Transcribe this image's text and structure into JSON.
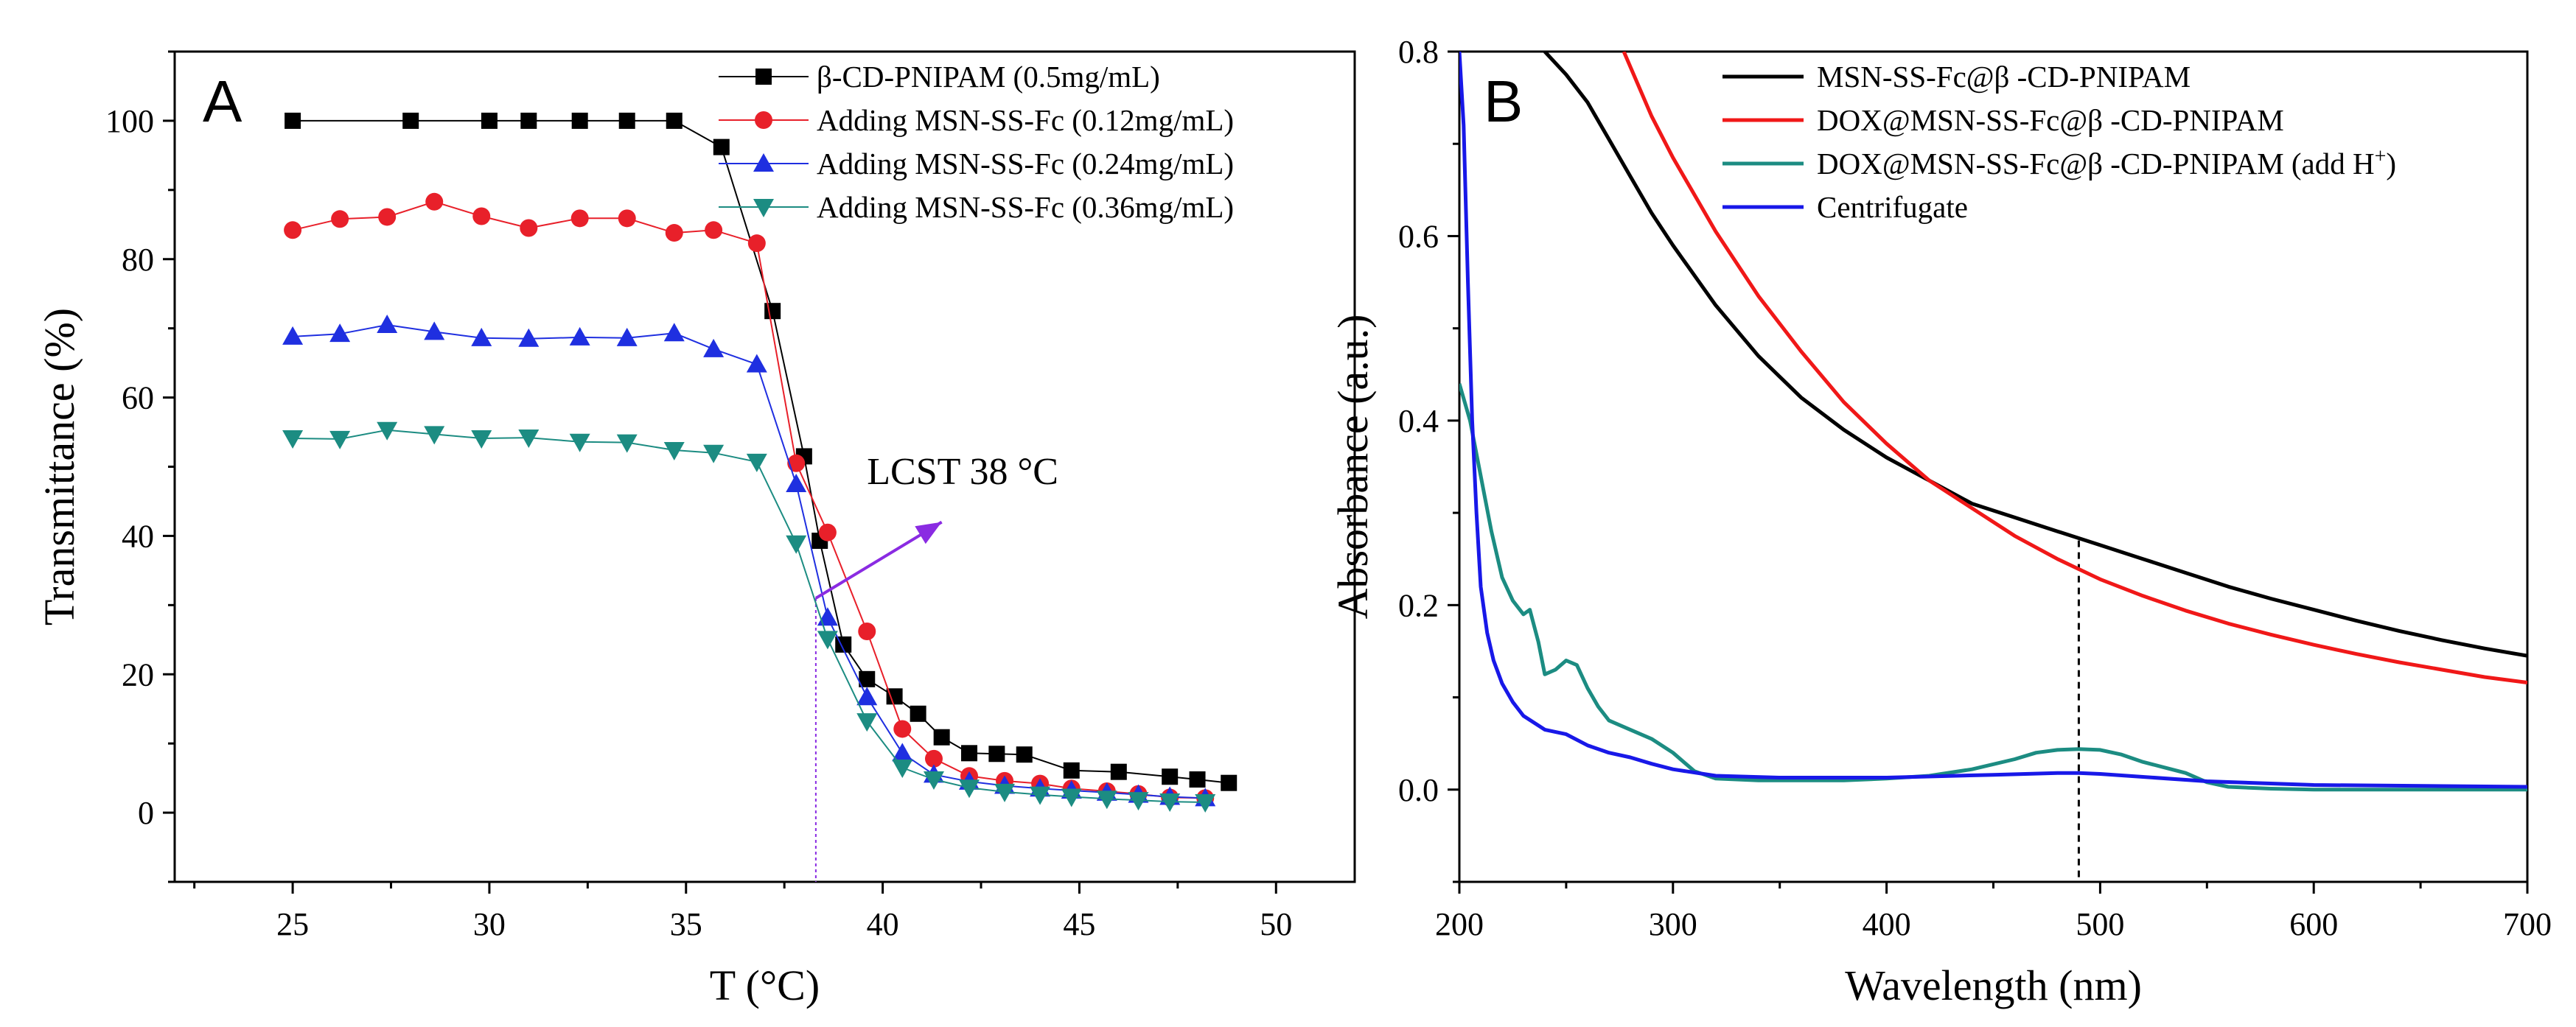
{
  "chart_data": [
    {
      "type": "line",
      "panel_label": "A",
      "title": "",
      "xlabel": "T (°C)",
      "ylabel": "Transmittance (%)",
      "xlim": [
        22,
        52
      ],
      "ylim": [
        -10,
        110
      ],
      "xticks": [
        25,
        30,
        35,
        40,
        45,
        50
      ],
      "yticks": [
        0,
        20,
        40,
        60,
        80,
        100
      ],
      "grid": false,
      "legend_position": "top-right",
      "annotation": {
        "text": "LCST 38 °C",
        "arrow_from": [
          38.3,
          31
        ],
        "arrow_to": [
          41.5,
          42
        ],
        "vline_x": 38.3,
        "color": "#8a2be2"
      },
      "series": [
        {
          "name": "β-CD-PNIPAM (0.5mg/mL)",
          "color": "#000000",
          "marker": "square",
          "x": [
            25,
            28,
            30,
            31,
            32.3,
            33.5,
            34.7,
            35.9,
            37.2,
            38.0,
            38.4,
            39.0,
            39.6,
            40.3,
            40.9,
            41.5,
            42.2,
            42.9,
            43.6,
            44.8,
            46.0,
            47.3,
            48.0,
            48.8
          ],
          "y": [
            100,
            100,
            100,
            100,
            100,
            100,
            100,
            96.2,
            72.5,
            51.5,
            39.3,
            24.3,
            19.3,
            16.8,
            14.3,
            10.9,
            8.6,
            8.5,
            8.4,
            6.1,
            5.9,
            5.2,
            4.8,
            4.3
          ]
        },
        {
          "name": "Adding MSN-SS-Fc (0.12mg/mL)",
          "color": "#e8202a",
          "marker": "circle",
          "x": [
            25,
            26.2,
            27.4,
            28.6,
            29.8,
            31.0,
            32.3,
            33.5,
            34.7,
            35.7,
            36.8,
            37.8,
            38.6,
            39.6,
            40.5,
            41.3,
            42.2,
            43.1,
            44.0,
            44.8,
            45.7,
            46.5,
            47.3,
            48.2
          ],
          "y": [
            84.2,
            85.8,
            86.1,
            88.3,
            86.2,
            84.5,
            85.9,
            85.9,
            83.8,
            84.2,
            82.3,
            50.5,
            40.5,
            26.2,
            12.1,
            7.8,
            5.3,
            4.6,
            4.2,
            3.5,
            3.1,
            2.7,
            2.2,
            2.1
          ]
        },
        {
          "name": "Adding MSN-SS-Fc (0.24mg/mL)",
          "color": "#1f2fe0",
          "marker": "triangle-up",
          "x": [
            25,
            26.2,
            27.4,
            28.6,
            29.8,
            31.0,
            32.3,
            33.5,
            34.7,
            35.7,
            36.8,
            37.8,
            38.6,
            39.6,
            40.5,
            41.3,
            42.2,
            43.1,
            44.0,
            44.8,
            45.7,
            46.5,
            47.3,
            48.2
          ],
          "y": [
            68.8,
            69.2,
            70.5,
            69.5,
            68.6,
            68.5,
            68.7,
            68.6,
            69.3,
            67.0,
            64.8,
            47.5,
            28.2,
            16.7,
            8.6,
            5.5,
            4.5,
            3.9,
            3.5,
            3.2,
            2.9,
            2.6,
            2.3,
            2.1
          ]
        },
        {
          "name": "Adding MSN-SS-Fc (0.36mg/mL)",
          "color": "#1c8c82",
          "marker": "triangle-down",
          "x": [
            25,
            26.2,
            27.4,
            28.6,
            29.8,
            31.0,
            32.3,
            33.5,
            34.7,
            35.7,
            36.8,
            37.8,
            38.6,
            39.6,
            40.5,
            41.3,
            42.2,
            43.1,
            44.0,
            44.8,
            45.7,
            46.5,
            47.3,
            48.2
          ],
          "y": [
            54.1,
            54.0,
            55.3,
            54.7,
            54.1,
            54.2,
            53.6,
            53.5,
            52.4,
            52.0,
            50.7,
            38.9,
            25.1,
            13.2,
            6.5,
            4.8,
            3.6,
            3.0,
            2.6,
            2.3,
            2.0,
            1.8,
            1.6,
            1.5
          ]
        }
      ]
    },
    {
      "type": "line",
      "panel_label": "B",
      "title": "",
      "xlabel": "Wavelength (nm)",
      "ylabel": "Absorbance (a.u.)",
      "xlim": [
        200,
        700
      ],
      "ylim": [
        -0.1,
        0.8
      ],
      "xticks": [
        200,
        300,
        400,
        500,
        600,
        700
      ],
      "yticks": [
        0.0,
        0.2,
        0.4,
        0.6,
        0.8
      ],
      "grid": false,
      "legend_position": "top-right",
      "annotation": {
        "vline_x": 490,
        "vline_y_top": 0.27,
        "style": "dashed"
      },
      "series": [
        {
          "name": "MSN-SS-Fc@β -CD-PNIPAM",
          "color": "#000000",
          "x": [
            240,
            250,
            260,
            270,
            280,
            290,
            300,
            320,
            340,
            360,
            380,
            400,
            420,
            440,
            460,
            480,
            500,
            520,
            540,
            560,
            580,
            600,
            620,
            640,
            660,
            680,
            700
          ],
          "y": [
            0.8,
            0.775,
            0.745,
            0.705,
            0.665,
            0.625,
            0.59,
            0.525,
            0.47,
            0.425,
            0.39,
            0.36,
            0.335,
            0.31,
            0.295,
            0.28,
            0.265,
            0.25,
            0.235,
            0.22,
            0.207,
            0.195,
            0.183,
            0.172,
            0.162,
            0.153,
            0.145
          ]
        },
        {
          "name": "DOX@MSN-SS-Fc@β -CD-PNIPAM",
          "color": "#f01818",
          "x": [
            277,
            290,
            300,
            320,
            340,
            360,
            380,
            400,
            420,
            440,
            460,
            480,
            500,
            520,
            540,
            560,
            580,
            600,
            620,
            640,
            660,
            680,
            700
          ],
          "y": [
            0.8,
            0.73,
            0.685,
            0.605,
            0.535,
            0.475,
            0.42,
            0.375,
            0.335,
            0.305,
            0.275,
            0.25,
            0.228,
            0.21,
            0.194,
            0.18,
            0.168,
            0.157,
            0.147,
            0.138,
            0.13,
            0.122,
            0.116
          ]
        },
        {
          "name": "DOX@MSN-SS-Fc@β -CD-PNIPAM (add H⁺)",
          "name_main": "DOX@MSN-SS-Fc@β -CD-PNIPAM (add H",
          "name_sup": "+",
          "name_end": ")",
          "color": "#1c8c82",
          "x": [
            200,
            205,
            210,
            215,
            220,
            225,
            230,
            233,
            237,
            240,
            245,
            250,
            255,
            260,
            265,
            270,
            280,
            290,
            300,
            310,
            320,
            340,
            360,
            380,
            400,
            420,
            440,
            460,
            470,
            480,
            490,
            500,
            510,
            520,
            530,
            540,
            550,
            560,
            580,
            600,
            620,
            650,
            700
          ],
          "y": [
            0.44,
            0.4,
            0.34,
            0.28,
            0.23,
            0.205,
            0.19,
            0.195,
            0.16,
            0.125,
            0.13,
            0.14,
            0.135,
            0.11,
            0.09,
            0.075,
            0.065,
            0.055,
            0.04,
            0.02,
            0.012,
            0.01,
            0.01,
            0.01,
            0.012,
            0.015,
            0.022,
            0.033,
            0.04,
            0.043,
            0.044,
            0.043,
            0.038,
            0.03,
            0.024,
            0.018,
            0.008,
            0.003,
            0.001,
            0.0,
            0.0,
            0.0,
            0.0
          ]
        },
        {
          "name": "Centrifugate",
          "color": "#1818e8",
          "x": [
            200,
            202,
            204,
            206,
            208,
            210,
            213,
            216,
            220,
            225,
            230,
            240,
            250,
            260,
            270,
            280,
            290,
            300,
            320,
            350,
            400,
            450,
            480,
            490,
            500,
            550,
            600,
            700
          ],
          "y": [
            0.8,
            0.72,
            0.55,
            0.4,
            0.3,
            0.22,
            0.17,
            0.14,
            0.115,
            0.095,
            0.08,
            0.065,
            0.06,
            0.048,
            0.04,
            0.035,
            0.028,
            0.022,
            0.015,
            0.013,
            0.013,
            0.016,
            0.018,
            0.018,
            0.017,
            0.009,
            0.005,
            0.003
          ]
        }
      ]
    }
  ]
}
